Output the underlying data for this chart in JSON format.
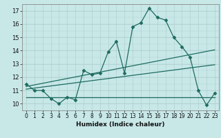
{
  "x": [
    0,
    1,
    2,
    3,
    4,
    5,
    6,
    7,
    8,
    9,
    10,
    11,
    12,
    13,
    14,
    15,
    16,
    17,
    18,
    19,
    20,
    21,
    22,
    23
  ],
  "y_main": [
    11.5,
    11.0,
    11.0,
    10.4,
    10.0,
    10.5,
    10.3,
    12.5,
    12.2,
    12.3,
    13.9,
    14.7,
    12.3,
    15.8,
    16.1,
    17.2,
    16.5,
    16.3,
    15.0,
    14.3,
    13.5,
    11.0,
    9.9,
    10.8
  ],
  "y_line_flat": [
    10.5,
    10.5,
    10.5,
    10.5,
    10.5,
    10.5,
    10.5,
    10.5,
    10.5,
    10.5,
    10.5,
    10.5,
    10.5,
    10.5,
    10.5,
    10.5,
    10.5,
    10.5,
    10.5,
    10.5,
    10.5,
    10.5,
    10.5,
    10.5
  ],
  "y_line_gentle": [
    11.1,
    11.18,
    11.26,
    11.34,
    11.42,
    11.5,
    11.58,
    11.66,
    11.74,
    11.82,
    11.9,
    11.98,
    12.06,
    12.14,
    12.22,
    12.3,
    12.38,
    12.46,
    12.54,
    12.62,
    12.7,
    12.78,
    12.86,
    12.94
  ],
  "y_line_steep": [
    11.3,
    11.42,
    11.54,
    11.66,
    11.78,
    11.9,
    12.02,
    12.14,
    12.26,
    12.38,
    12.5,
    12.62,
    12.74,
    12.86,
    12.98,
    13.1,
    13.22,
    13.34,
    13.46,
    13.58,
    13.7,
    13.82,
    13.94,
    14.06
  ],
  "ylim": [
    9.5,
    17.5
  ],
  "xlim": [
    -0.5,
    23.5
  ],
  "yticks": [
    10,
    11,
    12,
    13,
    14,
    15,
    16,
    17
  ],
  "xticks": [
    0,
    1,
    2,
    3,
    4,
    5,
    6,
    7,
    8,
    9,
    10,
    11,
    12,
    13,
    14,
    15,
    16,
    17,
    18,
    19,
    20,
    21,
    22,
    23
  ],
  "xlabel": "Humidex (Indice chaleur)",
  "line_color": "#1e6b5e",
  "bg_color": "#c8e8e8",
  "grid_major_color": "#b0d0d0",
  "grid_minor_color": "#d8ecec",
  "marker": "D",
  "marker_size": 2.5,
  "lw": 0.9,
  "tick_fontsize": 5.5,
  "xlabel_fontsize": 6.5
}
